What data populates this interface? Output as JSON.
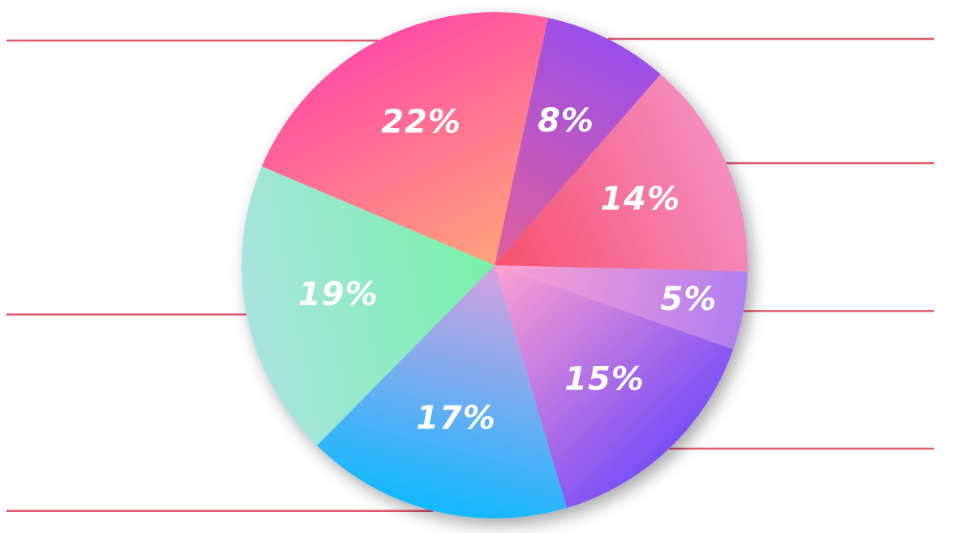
{
  "chart_data": {
    "type": "pie",
    "title": "",
    "slices": [
      {
        "label": "22%",
        "value": 22,
        "color_start": "#ff4fa3",
        "color_end": "#ffa37a"
      },
      {
        "label": "8%",
        "value": 8,
        "color_start": "#9b4fe8",
        "color_end": "#e0609a"
      },
      {
        "label": "14%",
        "value": 14,
        "color_start": "#f48cc0",
        "color_end": "#f6506a"
      },
      {
        "label": "5%",
        "value": 5,
        "color_start": "#b07ef0",
        "color_end": "#ffa0d0"
      },
      {
        "label": "15%",
        "value": 15,
        "color_start": "#7a4ff5",
        "color_end": "#ffa0d0"
      },
      {
        "label": "17%",
        "value": 17,
        "color_start": "#12b8ff",
        "color_end": "#d8a0e0"
      },
      {
        "label": "19%",
        "value": 19,
        "color_start": "#a8e4e0",
        "color_end": "#78f0a8"
      }
    ],
    "legend": "none",
    "leader_color": "#e05a6e"
  }
}
